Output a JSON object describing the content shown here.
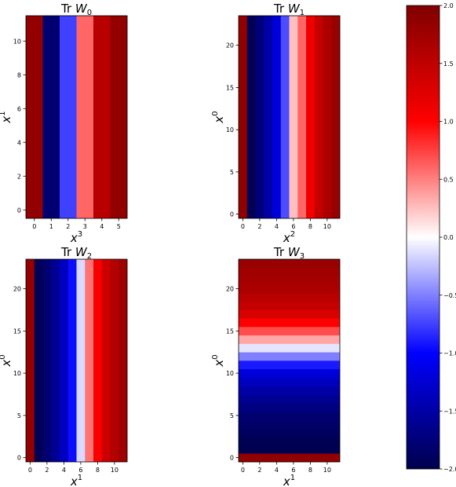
{
  "chart_data": [
    {
      "type": "heatmap",
      "title": "Tr W_0",
      "title_base": "Tr ",
      "title_var": "W",
      "title_sub": "0",
      "xlabel_var": "x",
      "xlabel_sup": "3",
      "ylabel_var": "x",
      "ylabel_sup": "1",
      "x": [
        0,
        1,
        2,
        3,
        4,
        5
      ],
      "y_range": [
        0,
        11
      ],
      "x_ticks": [
        "0",
        "1",
        "2",
        "3",
        "4",
        "5"
      ],
      "y_ticks": [
        "0",
        "2",
        "4",
        "6",
        "8",
        "10"
      ],
      "orientation": "columns",
      "values": [
        1.85,
        -1.8,
        -0.75,
        0.6,
        1.55,
        1.85
      ]
    },
    {
      "type": "heatmap",
      "title": "Tr W_1",
      "title_base": "Tr ",
      "title_var": "W",
      "title_sub": "1",
      "xlabel_var": "x",
      "xlabel_sup": "2",
      "ylabel_var": "x",
      "ylabel_sup": "0",
      "x": [
        0,
        1,
        2,
        3,
        4,
        5,
        6,
        7,
        8,
        9,
        10,
        11
      ],
      "y_range": [
        0,
        23
      ],
      "x_ticks": [
        "0",
        "2",
        "4",
        "6",
        "8",
        "10"
      ],
      "y_ticks": [
        "0",
        "5",
        "10",
        "15",
        "20"
      ],
      "orientation": "columns",
      "values": [
        1.85,
        -1.95,
        -1.75,
        -1.5,
        -1.2,
        -0.7,
        0.25,
        0.6,
        1.1,
        1.45,
        1.65,
        1.8
      ]
    },
    {
      "type": "heatmap",
      "title": "Tr W_2",
      "title_base": "Tr ",
      "title_var": "W",
      "title_sub": "2",
      "xlabel_var": "x",
      "xlabel_sup": "1",
      "ylabel_var": "x",
      "ylabel_sup": "0",
      "x": [
        0,
        1,
        2,
        3,
        4,
        5,
        6,
        7,
        8,
        9,
        10,
        11
      ],
      "y_range": [
        0,
        23
      ],
      "x_ticks": [
        "0",
        "2",
        "4",
        "6",
        "8",
        "10"
      ],
      "y_ticks": [
        "0",
        "5",
        "10",
        "15",
        "20"
      ],
      "orientation": "columns",
      "values": [
        1.85,
        -1.95,
        -1.8,
        -1.6,
        -1.35,
        -0.95,
        -0.15,
        0.55,
        1.05,
        1.4,
        1.6,
        1.75
      ]
    },
    {
      "type": "heatmap",
      "title": "Tr W_3",
      "title_base": "Tr ",
      "title_var": "W",
      "title_sub": "3",
      "xlabel_var": "x",
      "xlabel_sup": "1",
      "ylabel_var": "x",
      "ylabel_sup": "0",
      "x_range": [
        0,
        11
      ],
      "y": [
        0,
        1,
        2,
        3,
        4,
        5,
        6,
        7,
        8,
        9,
        10,
        11,
        12,
        13,
        14,
        15,
        16,
        17,
        18,
        19,
        20,
        21,
        22,
        23
      ],
      "x_ticks": [
        "0",
        "2",
        "4",
        "6",
        "8",
        "10"
      ],
      "y_ticks": [
        "0",
        "5",
        "10",
        "15",
        "20"
      ],
      "orientation": "rows",
      "values": [
        1.85,
        -1.98,
        -1.95,
        -1.9,
        -1.85,
        -1.8,
        -1.7,
        -1.6,
        -1.5,
        -1.35,
        -1.2,
        -0.9,
        -0.5,
        -0.1,
        0.35,
        0.7,
        1.0,
        1.3,
        1.45,
        1.55,
        1.65,
        1.7,
        1.75,
        1.8
      ]
    }
  ],
  "colorbar": {
    "cmap": "seismic",
    "min": -2.0,
    "max": 2.0,
    "ticks": [
      -2.0,
      -1.5,
      -1.0,
      -0.5,
      0.0,
      0.5,
      1.0,
      1.5,
      2.0
    ],
    "tick_labels": [
      "−2.0",
      "−1.5",
      "−1.0",
      "−0.5",
      "0.0",
      "0.5",
      "1.0",
      "1.5",
      "2.0"
    ]
  }
}
